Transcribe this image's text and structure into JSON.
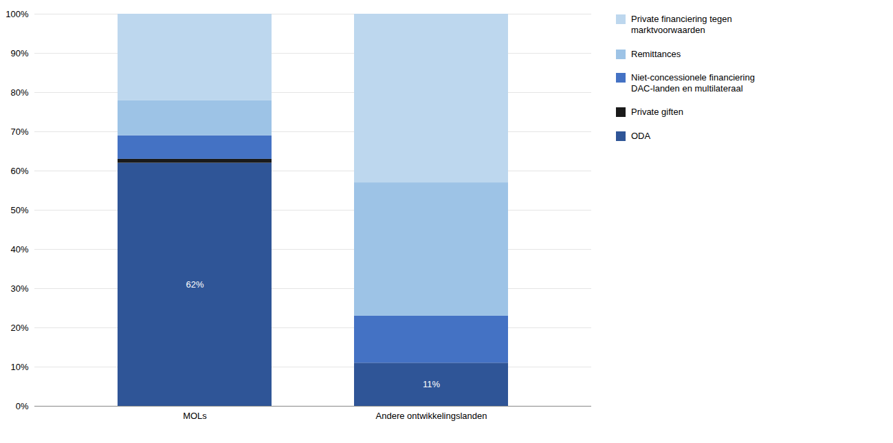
{
  "chart_data": {
    "type": "bar",
    "stacked": true,
    "categories": [
      "MOLs",
      "Andere ontwikkelingslanden"
    ],
    "series": [
      {
        "name": "ODA",
        "color": "#2F5597",
        "values": [
          62,
          11
        ],
        "data_labels": true,
        "value_labels": [
          "62%",
          "11%"
        ]
      },
      {
        "name": "Private giften",
        "color": "#1A1A1A",
        "values": [
          1,
          0
        ]
      },
      {
        "name": "Niet-concessionele financiering\nDAC-landen en multilateraal",
        "color": "#4472C4",
        "values": [
          6,
          12
        ]
      },
      {
        "name": "Remittances",
        "color": "#9DC3E6",
        "values": [
          9,
          34
        ]
      },
      {
        "name": "Private financiering tegen\nmarktvoorwaarden",
        "color": "#BDD7EE",
        "values": [
          22,
          43
        ]
      }
    ],
    "ylim": [
      0,
      100
    ],
    "yticks": [
      {
        "value": 0,
        "label": "0%"
      },
      {
        "value": 10,
        "label": "10%"
      },
      {
        "value": 20,
        "label": "20%"
      },
      {
        "value": 30,
        "label": "30%"
      },
      {
        "value": 40,
        "label": "40%"
      },
      {
        "value": 50,
        "label": "50%"
      },
      {
        "value": 60,
        "label": "60%"
      },
      {
        "value": 70,
        "label": "70%"
      },
      {
        "value": 80,
        "label": "80%"
      },
      {
        "value": 90,
        "label": "90%"
      },
      {
        "value": 100,
        "label": "100%"
      }
    ],
    "grid": true,
    "legend": "right"
  }
}
